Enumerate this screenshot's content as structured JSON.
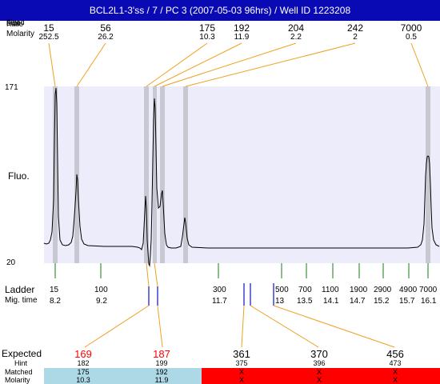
{
  "title": "BCL2L1-3'ss / 7 / PC 3 (2007-05-03 96hrs) / Well ID 1223208",
  "header": {
    "labels": [
      "Fitted",
      "Size",
      "Ratio"
    ],
    "molarity_label": "Molarity",
    "peaks": [
      {
        "size": "15",
        "molarity": "252.5"
      },
      {
        "size": "56",
        "molarity": "26.2"
      },
      {
        "size": "175",
        "molarity": "10.3"
      },
      {
        "size": "192",
        "molarity": "11.9"
      },
      {
        "size": "204",
        "molarity": "2.2"
      },
      {
        "size": "242",
        "molarity": "2"
      },
      {
        "size": "7000",
        "molarity": "0.5"
      }
    ]
  },
  "plot": {
    "y_max_label": "171",
    "y_min_label": "20",
    "y_axis_label": "Fluo."
  },
  "ladder": {
    "label": "Ladder",
    "mig_label": "Mig. time",
    "items": [
      {
        "size": "15",
        "time": "8.2"
      },
      {
        "size": "100",
        "time": "9.2"
      },
      {
        "size": "300",
        "time": "11.7"
      },
      {
        "size": "500",
        "time": "13"
      },
      {
        "size": "700",
        "time": "13.5"
      },
      {
        "size": "1100",
        "time": "14.1"
      },
      {
        "size": "1900",
        "time": "14.7"
      },
      {
        "size": "2900",
        "time": "15.2"
      },
      {
        "size": "4900",
        "time": "15.7"
      },
      {
        "size": "7000",
        "time": "16.1"
      }
    ]
  },
  "expected": {
    "expected_label": "Expected",
    "hint_label": "Hint",
    "matched_label": "Matched",
    "molarity_label": "Molarity",
    "items": [
      {
        "expected": "169",
        "hint": "182",
        "matched": "175",
        "molarity": "10.3",
        "status": "match"
      },
      {
        "expected": "187",
        "hint": "199",
        "matched": "192",
        "molarity": "11.9",
        "status": "match"
      },
      {
        "expected": "361",
        "hint": "375",
        "matched": "X",
        "molarity": "X",
        "status": "miss"
      },
      {
        "expected": "370",
        "hint": "396",
        "matched": "X",
        "molarity": "X",
        "status": "miss"
      },
      {
        "expected": "456",
        "hint": "473",
        "matched": "X",
        "molarity": "X",
        "status": "miss"
      }
    ]
  },
  "colors": {
    "title_bg": "#0a0ab4",
    "plot_bg": "#ececfb",
    "peak_band": "#c8c8d2",
    "leader_line": "#f0a020",
    "ladder_tick": "#1a7a1a",
    "marker_tick": "#1010c0",
    "match_bg": "#add8e6",
    "miss_bg": "#ff0000",
    "expected_red": "#ff0000"
  }
}
